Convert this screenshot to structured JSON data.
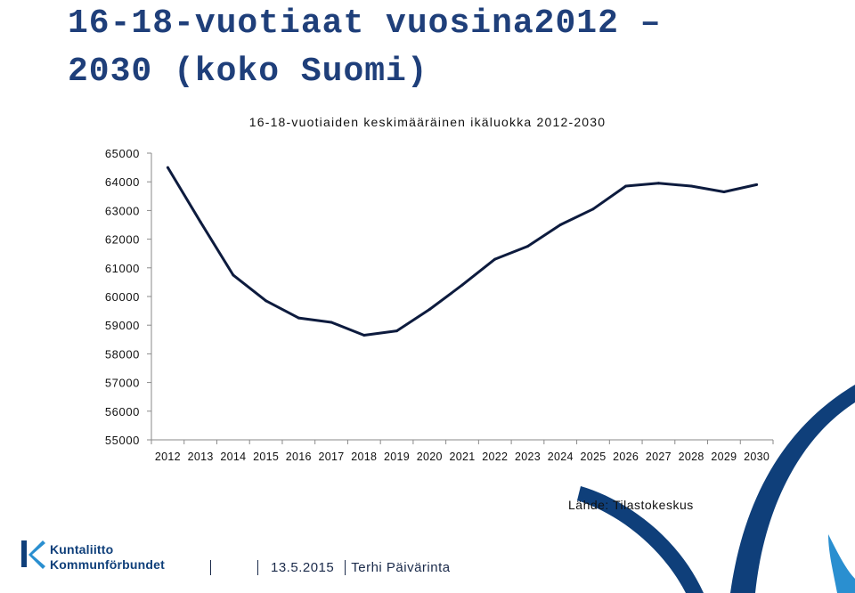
{
  "slide": {
    "title_line1": "16-18-vuotiaat vuosina2012 –",
    "title_line2": "2030 (koko Suomi)",
    "source": "Lähde: Tilastokeskus"
  },
  "footer": {
    "logo_line1": "Kuntaliitto",
    "logo_line2": "Kommunförbundet",
    "date": "13.5.2015",
    "author": "Terhi Päivärinta"
  },
  "colors": {
    "title": "#1f3f7a",
    "line": "#0d1b3e",
    "brand_blue": "#0f3f7a",
    "brand_light": "#2a8fd0"
  },
  "chart_data": {
    "type": "line",
    "title": "16-18-vuotiaiden keskimääräinen ikäluokka 2012-2030",
    "categories": [
      "2012",
      "2013",
      "2014",
      "2015",
      "2016",
      "2017",
      "2018",
      "2019",
      "2020",
      "2021",
      "2022",
      "2023",
      "2024",
      "2025",
      "2026",
      "2027",
      "2028",
      "2029",
      "2030"
    ],
    "series": [
      {
        "values": [
          64500,
          62600,
          60750,
          59850,
          59250,
          59100,
          58650,
          58800,
          59550,
          60400,
          61300,
          61750,
          62500,
          63050,
          63850,
          63950,
          63850,
          63650,
          63900
        ]
      }
    ],
    "yticks": [
      55000,
      56000,
      57000,
      58000,
      59000,
      60000,
      61000,
      62000,
      63000,
      64000,
      65000
    ],
    "ylim": [
      55000,
      65000
    ],
    "grid": false
  }
}
